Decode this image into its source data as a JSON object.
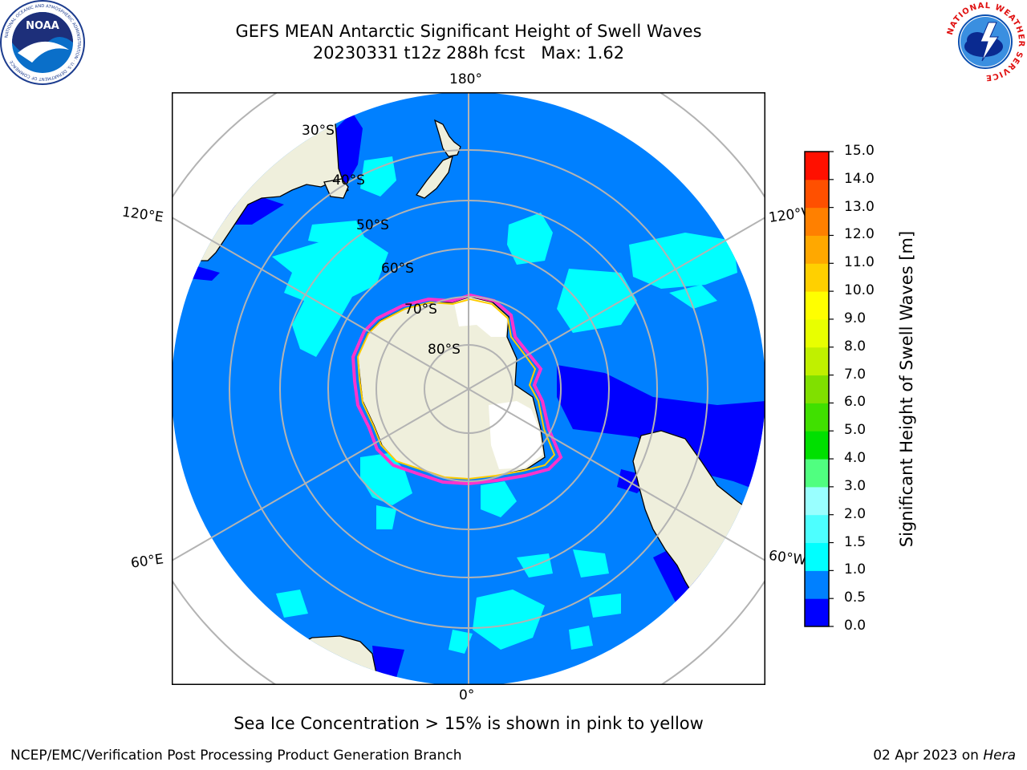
{
  "title": {
    "line1": "GEFS MEAN Antarctic Significant Height of Swell Waves",
    "line2": "20230331 t12z 288h fcst   Max: 1.62"
  },
  "logos": {
    "left": "NOAA",
    "left_ring": "NATIONAL OCEANIC AND ATMOSPHERIC ADMINISTRATION · U.S. DEPARTMENT OF COMMERCE",
    "right_ring": "NATIONAL WEATHER SERVICE"
  },
  "map": {
    "projection": "south-polar-stereographic",
    "longitude_labels": {
      "top": "180°",
      "bottom": "0°",
      "left_upper": "120°E",
      "left_lower": "60°E",
      "right_upper": "120°W",
      "right_lower": "60°W"
    },
    "latitude_labels": [
      "30°S",
      "40°S",
      "50°S",
      "60°S",
      "70°S",
      "80°S"
    ],
    "colors": {
      "land": "#efefdc",
      "ocean_base": "#0080ff",
      "swell_low": "#0000ff",
      "swell_mid": "#00ffff",
      "ice": "#ffffff",
      "ice_edge_pink": "#ff33cc",
      "ice_edge_yellow": "#ffcc00",
      "grid": "#b3b3b3"
    }
  },
  "colorbar": {
    "label": "Significant Height of Swell Waves [m]",
    "ticks": [
      "0.0",
      "0.5",
      "1.0",
      "1.5",
      "2.0",
      "3.0",
      "4.0",
      "5.0",
      "6.0",
      "7.0",
      "8.0",
      "9.0",
      "10.0",
      "11.0",
      "12.0",
      "13.0",
      "14.0",
      "15.0"
    ],
    "colors": [
      "#0000ff",
      "#0080ff",
      "#00ffff",
      "#4dffff",
      "#99ffff",
      "#50ff80",
      "#00e000",
      "#40e000",
      "#80e000",
      "#c0f000",
      "#e8ff00",
      "#ffff00",
      "#ffd000",
      "#ffa800",
      "#ff8000",
      "#ff5000",
      "#ff1000"
    ]
  },
  "note": "Sea Ice Concentration > 15% is shown in pink to yellow",
  "footer": {
    "left": "NCEP/EMC/Verification Post Processing Product Generation Branch",
    "right_date": "02 Apr 2023 on ",
    "right_host": "Hera"
  }
}
